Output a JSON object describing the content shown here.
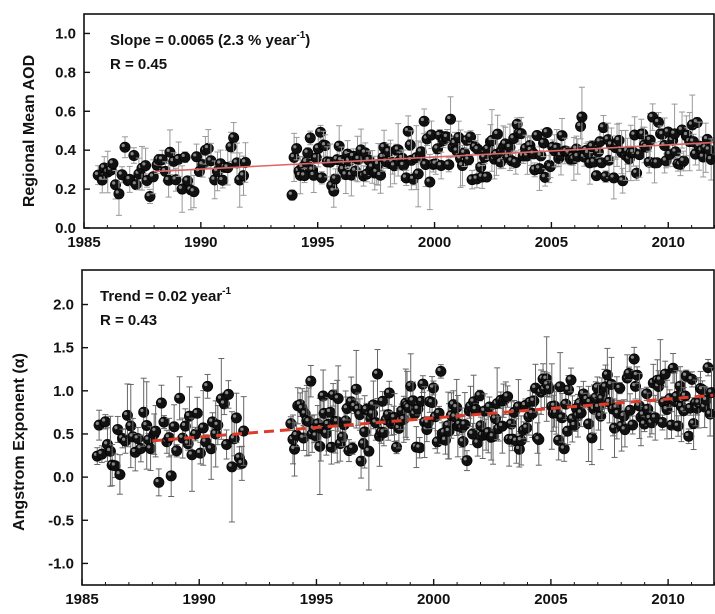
{
  "chart_data": [
    {
      "type": "scatter",
      "ylabel": "Regional Mean AOD",
      "xlim": [
        1985,
        2012
      ],
      "ylim": [
        0,
        1.1
      ],
      "x_ticks": [
        1985,
        1990,
        1995,
        2000,
        2005,
        2010
      ],
      "y_ticks": [
        "0.0",
        "0.2",
        "0.4",
        "0.6",
        "0.8",
        "1.0"
      ],
      "grid": false,
      "annotation_line1": "Slope = 0.0065 (2.3 % year",
      "annotation_line1_sup": "-1",
      "annotation_line1_end": ")",
      "annotation_line2": "R = 0.45",
      "trend": {
        "x0": 1988,
        "y0": 0.29,
        "x1": 2012,
        "y1": 0.44,
        "color": "#e06666",
        "style": "solid"
      },
      "marker_color": "#111111",
      "errorbar_color": "#999999",
      "segments": [
        {
          "start": 1985.6,
          "end": 1992.0,
          "points": 52,
          "mean0": 0.29,
          "mean1": 0.33,
          "spread": 0.09
        },
        {
          "start": 1993.9,
          "end": 2011.9,
          "points": 215,
          "mean0": 0.31,
          "mean1": 0.44,
          "spread": 0.1
        }
      ]
    },
    {
      "type": "scatter",
      "ylabel": "Angstrom Exponent (α)",
      "xlim": [
        1985,
        2012
      ],
      "ylim": [
        -1.25,
        2.4
      ],
      "x_ticks": [
        1985,
        1990,
        1995,
        2000,
        2005,
        2010
      ],
      "y_ticks": [
        "-1.0",
        "-0.5",
        "0.0",
        "0.5",
        "1.0",
        "1.5",
        "2.0"
      ],
      "grid": false,
      "annotation_line1": "Trend = 0.02 year",
      "annotation_line1_sup": "-1",
      "annotation_line1_end": "",
      "annotation_line2": "R = 0.43",
      "trend": {
        "x0": 1988,
        "y0": 0.42,
        "x1": 2012,
        "y1": 0.95,
        "color": "#e03c2c",
        "style": "dashed"
      },
      "marker_color": "#111111",
      "errorbar_color": "#666666",
      "segments": [
        {
          "start": 1985.6,
          "end": 1992.0,
          "points": 58,
          "mean0": 0.4,
          "mean1": 0.5,
          "spread": 0.35
        },
        {
          "start": 1993.9,
          "end": 2011.9,
          "points": 240,
          "mean0": 0.55,
          "mean1": 0.9,
          "spread": 0.3
        }
      ]
    }
  ]
}
